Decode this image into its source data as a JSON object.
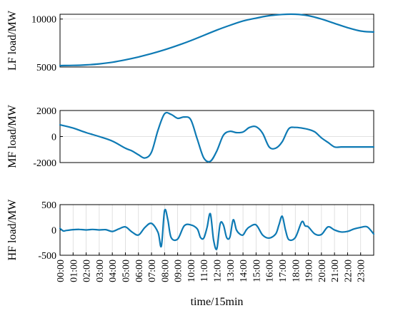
{
  "chart_data": [
    {
      "type": "line",
      "ylabel": "LF load/MW",
      "ylim": [
        5000,
        10500
      ],
      "yticks": [
        5000,
        10000
      ],
      "xlim": [
        0,
        96
      ],
      "grid": "horizontal",
      "color": "#0e7ab4",
      "series": [
        {
          "x": [
            0,
            4,
            8,
            12,
            16,
            20,
            24,
            28,
            32,
            36,
            40,
            44,
            48,
            52,
            56,
            60,
            64,
            68,
            72,
            76,
            80,
            84,
            88,
            92,
            96
          ],
          "y": [
            5150,
            5170,
            5220,
            5330,
            5500,
            5750,
            6050,
            6400,
            6800,
            7250,
            7750,
            8300,
            8850,
            9350,
            9800,
            10100,
            10350,
            10480,
            10500,
            10350,
            10000,
            9550,
            9100,
            8750,
            8650
          ]
        }
      ]
    },
    {
      "type": "line",
      "ylabel": "MF load/MW",
      "ylim": [
        -2000,
        2000
      ],
      "yticks": [
        -2000,
        0,
        2000
      ],
      "xlim": [
        0,
        96
      ],
      "grid": "horizontal",
      "color": "#0e7ab4",
      "series": [
        {
          "x": [
            0,
            4,
            8,
            12,
            16,
            20,
            22,
            24,
            26,
            28,
            30,
            32,
            34,
            36,
            38,
            40,
            42,
            44,
            46,
            48,
            50,
            52,
            54,
            56,
            58,
            60,
            62,
            64,
            66,
            68,
            70,
            72,
            74,
            76,
            78,
            80,
            82,
            84,
            86,
            88,
            90,
            92,
            94,
            96
          ],
          "y": [
            900,
            650,
            300,
            0,
            -350,
            -900,
            -1100,
            -1400,
            -1650,
            -1200,
            500,
            1750,
            1700,
            1400,
            1500,
            1300,
            -200,
            -1650,
            -1900,
            -1100,
            100,
            400,
            300,
            350,
            700,
            750,
            250,
            -800,
            -900,
            -400,
            600,
            700,
            650,
            550,
            350,
            -100,
            -450,
            -800,
            -800,
            -800,
            -800,
            -800,
            -800,
            -800
          ]
        }
      ]
    },
    {
      "type": "line",
      "ylabel": "HF load/MW",
      "ylim": [
        -500,
        500
      ],
      "yticks": [
        -500,
        0,
        500
      ],
      "xlim": [
        0,
        96
      ],
      "xlabel": "time/15min",
      "xticks": [
        0,
        4,
        8,
        12,
        16,
        20,
        24,
        28,
        32,
        36,
        40,
        44,
        48,
        52,
        56,
        60,
        64,
        68,
        72,
        76,
        80,
        84,
        88,
        92
      ],
      "xticklabels": [
        "00:00",
        "01:00",
        "02:00",
        "03:00",
        "04:00",
        "05:00",
        "06:00",
        "07:00",
        "08:00",
        "09:00",
        "10:00",
        "11:00",
        "12:00",
        "13:00",
        "14:00",
        "15:00",
        "16:00",
        "17:00",
        "18:00",
        "19:00",
        "20:00",
        "21:00",
        "22:00",
        "23:00"
      ],
      "grid": "vertical",
      "color": "#0e7ab4",
      "series": [
        {
          "x": [
            0,
            1,
            2,
            4,
            6,
            8,
            10,
            12,
            14,
            16,
            18,
            20,
            22,
            24,
            26,
            28,
            30,
            31,
            32,
            33,
            34,
            36,
            38,
            40,
            42,
            43,
            44,
            45,
            46,
            47,
            48,
            49,
            50,
            51,
            52,
            53,
            54,
            55,
            56,
            57,
            58,
            60,
            62,
            64,
            66,
            67,
            68,
            69,
            70,
            72,
            74,
            75,
            76,
            78,
            80,
            82,
            84,
            86,
            88,
            90,
            92,
            94,
            96
          ],
          "y": [
            30,
            -20,
            -10,
            5,
            10,
            0,
            10,
            0,
            5,
            -30,
            20,
            60,
            -40,
            -100,
            50,
            130,
            -50,
            -320,
            380,
            200,
            -150,
            -180,
            80,
            100,
            20,
            -150,
            -160,
            50,
            320,
            -200,
            -370,
            120,
            100,
            -150,
            -140,
            200,
            0,
            -80,
            -100,
            0,
            60,
            100,
            -100,
            -160,
            -80,
            100,
            270,
            0,
            -190,
            -150,
            160,
            80,
            60,
            -80,
            -90,
            60,
            0,
            -40,
            -30,
            20,
            50,
            60,
            -80
          ]
        }
      ]
    }
  ]
}
